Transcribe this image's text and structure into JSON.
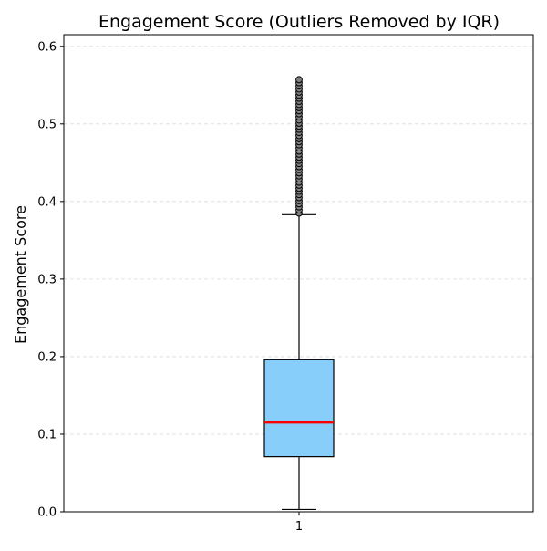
{
  "chart_data": {
    "type": "box",
    "title": "Engagement Score (Outliers Removed by IQR)",
    "xlabel": "",
    "ylabel": "Engagement Score",
    "ylim": [
      0.0,
      0.615
    ],
    "y_ticks": [
      "0.0",
      "0.1",
      "0.2",
      "0.3",
      "0.4",
      "0.5",
      "0.6"
    ],
    "y_tick_values": [
      0.0,
      0.1,
      0.2,
      0.3,
      0.4,
      0.5,
      0.6
    ],
    "grid": "y-dashed",
    "categories": [
      "1"
    ],
    "box": {
      "whisker_low": 0.003,
      "q1": 0.071,
      "median": 0.115,
      "q3": 0.196,
      "whisker_high": 0.383
    },
    "outliers": [
      0.385,
      0.389,
      0.393,
      0.397,
      0.401,
      0.405,
      0.409,
      0.413,
      0.417,
      0.421,
      0.425,
      0.429,
      0.433,
      0.437,
      0.441,
      0.445,
      0.449,
      0.453,
      0.457,
      0.461,
      0.465,
      0.469,
      0.473,
      0.477,
      0.481,
      0.485,
      0.489,
      0.493,
      0.497,
      0.501,
      0.505,
      0.509,
      0.513,
      0.517,
      0.521,
      0.525,
      0.529,
      0.533,
      0.537,
      0.541,
      0.545,
      0.549,
      0.553,
      0.557
    ],
    "colors": {
      "box_fill": "#87CEFA",
      "box_edge": "#000000",
      "median": "#FF0000",
      "outlier_fill": "#808080",
      "grid": "#cccccc"
    }
  }
}
